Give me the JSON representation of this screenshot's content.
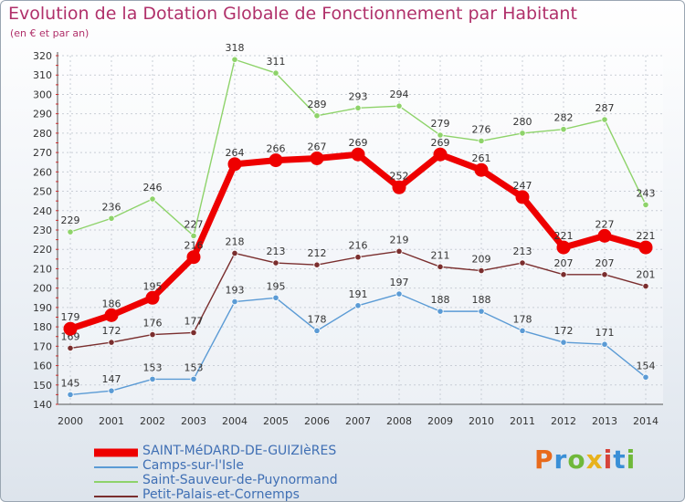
{
  "chart_data": {
    "type": "line",
    "title": "Evolution de la Dotation Globale de Fonctionnement par Habitant",
    "subtitle": "(en € et par an)",
    "x": [
      "2000",
      "2001",
      "2002",
      "2003",
      "2004",
      "2005",
      "2006",
      "2007",
      "2008",
      "2009",
      "2010",
      "2011",
      "2012",
      "2013",
      "2014"
    ],
    "ylim": [
      140,
      320
    ],
    "yticks": [
      140,
      150,
      160,
      170,
      180,
      190,
      200,
      210,
      220,
      230,
      240,
      250,
      260,
      270,
      280,
      290,
      300,
      310,
      320
    ],
    "grid": true,
    "series": [
      {
        "name": "Saint-Sauveur-de-Puynormand",
        "color": "#8ed36a",
        "values": [
          229,
          236,
          246,
          227,
          318,
          311,
          289,
          293,
          294,
          279,
          276,
          280,
          282,
          287,
          243
        ]
      },
      {
        "name": "Petit-Palais-et-Cornemps",
        "color": "#7a2e2e",
        "values": [
          169,
          172,
          176,
          177,
          218,
          213,
          212,
          216,
          219,
          211,
          209,
          213,
          207,
          207,
          201
        ]
      },
      {
        "name": "Camps-sur-l'Isle",
        "color": "#5b9bd5",
        "values": [
          145,
          147,
          153,
          153,
          193,
          195,
          178,
          191,
          197,
          188,
          188,
          178,
          172,
          171,
          154
        ]
      },
      {
        "name": "SAINT-MéDARD-DE-GUIZIèRES",
        "color": "#ee0000",
        "bold": true,
        "values": [
          179,
          186,
          195,
          216,
          264,
          266,
          267,
          269,
          252,
          269,
          261,
          247,
          221,
          227,
          221
        ]
      }
    ],
    "legend": [
      "SAINT-MéDARD-DE-GUIZIèRES",
      "Camps-sur-l'Isle",
      "Saint-Sauveur-de-Puynormand",
      "Petit-Palais-et-Cornemps"
    ]
  },
  "brand": {
    "text": "Proxiti",
    "colors": [
      "#e86a1c",
      "#3a8fd6",
      "#6fb83a",
      "#e8b21c",
      "#d6433a",
      "#3a8fd6",
      "#6fb83a"
    ]
  }
}
